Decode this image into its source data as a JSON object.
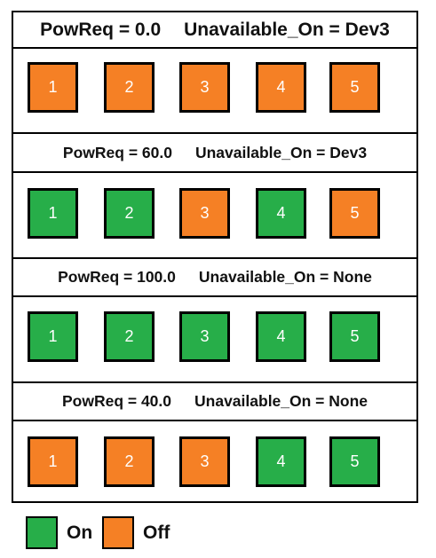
{
  "colors": {
    "on": "#27ae49",
    "off": "#f58025"
  },
  "scenarios": [
    {
      "powreq": "PowReq = 0.0",
      "unavailable": "Unavailable_On = Dev3",
      "devices": [
        {
          "label": "1",
          "state": "off"
        },
        {
          "label": "2",
          "state": "off"
        },
        {
          "label": "3",
          "state": "off"
        },
        {
          "label": "4",
          "state": "off"
        },
        {
          "label": "5",
          "state": "off"
        }
      ]
    },
    {
      "powreq": "PowReq = 60.0",
      "unavailable": "Unavailable_On = Dev3",
      "devices": [
        {
          "label": "1",
          "state": "on"
        },
        {
          "label": "2",
          "state": "on"
        },
        {
          "label": "3",
          "state": "off"
        },
        {
          "label": "4",
          "state": "on"
        },
        {
          "label": "5",
          "state": "off"
        }
      ]
    },
    {
      "powreq": "PowReq = 100.0",
      "unavailable": "Unavailable_On = None",
      "devices": [
        {
          "label": "1",
          "state": "on"
        },
        {
          "label": "2",
          "state": "on"
        },
        {
          "label": "3",
          "state": "on"
        },
        {
          "label": "4",
          "state": "on"
        },
        {
          "label": "5",
          "state": "on"
        }
      ]
    },
    {
      "powreq": "PowReq = 40.0",
      "unavailable": "Unavailable_On = None",
      "devices": [
        {
          "label": "1",
          "state": "off"
        },
        {
          "label": "2",
          "state": "off"
        },
        {
          "label": "3",
          "state": "off"
        },
        {
          "label": "4",
          "state": "on"
        },
        {
          "label": "5",
          "state": "on"
        }
      ]
    }
  ],
  "legend": {
    "on_label": "On",
    "off_label": "Off"
  }
}
